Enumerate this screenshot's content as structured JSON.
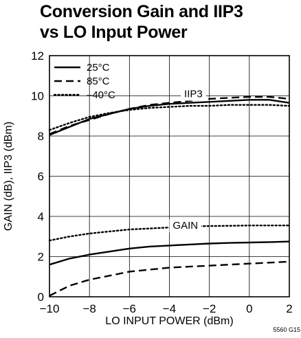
{
  "chart_data": {
    "type": "line",
    "title_line1": "Conversion Gain and IIP3",
    "title_line2": "vs LO Input Power",
    "xlabel": "LO INPUT POWER (dBm)",
    "ylabel": "GAIN (dB), IIP3 (dBm)",
    "xlim": [
      -10,
      2
    ],
    "ylim": [
      0,
      12
    ],
    "xticks": [
      -10,
      -8,
      -6,
      -4,
      -2,
      0,
      2
    ],
    "yticks": [
      0,
      2,
      4,
      6,
      8,
      10,
      12
    ],
    "grid": true,
    "legend_position": "top-left",
    "legend": [
      {
        "label": "25°C",
        "style": "solid"
      },
      {
        "label": "85°C",
        "style": "dashed"
      },
      {
        "label": "–40°C",
        "style": "dotted"
      }
    ],
    "annotations": [
      {
        "text": "IIP3",
        "x": -2.8,
        "y": 10.1
      },
      {
        "text": "GAIN",
        "x": -3.2,
        "y": 3.55
      }
    ],
    "figure_code": "5560 G15",
    "series": [
      {
        "group": "IIP3",
        "temperature": "25°C",
        "style": "solid",
        "x": [
          -10,
          -9,
          -8,
          -7,
          -6,
          -5,
          -4,
          -3,
          -2,
          -1,
          0,
          1,
          2
        ],
        "y": [
          8.05,
          8.45,
          8.85,
          9.1,
          9.35,
          9.5,
          9.6,
          9.65,
          9.7,
          9.75,
          9.8,
          9.8,
          9.65
        ]
      },
      {
        "group": "IIP3",
        "temperature": "85°C",
        "style": "dashed",
        "x": [
          -10,
          -9,
          -8,
          -7,
          -6,
          -5,
          -4,
          -3,
          -2,
          -1,
          0,
          1,
          2
        ],
        "y": [
          8.1,
          8.5,
          8.8,
          9.1,
          9.35,
          9.55,
          9.65,
          9.75,
          9.85,
          9.9,
          9.95,
          9.95,
          9.85
        ]
      },
      {
        "group": "IIP3",
        "temperature": "–40°C",
        "style": "dotted",
        "x": [
          -10,
          -9,
          -8,
          -7,
          -6,
          -5,
          -4,
          -3,
          -2,
          -1,
          0,
          1,
          2
        ],
        "y": [
          8.3,
          8.65,
          8.95,
          9.15,
          9.3,
          9.4,
          9.45,
          9.5,
          9.5,
          9.55,
          9.55,
          9.55,
          9.5
        ]
      },
      {
        "group": "GAIN",
        "temperature": "25°C",
        "style": "solid",
        "x": [
          -10,
          -9,
          -8,
          -7,
          -6,
          -5,
          -4,
          -3,
          -2,
          -1,
          0,
          1,
          2
        ],
        "y": [
          1.6,
          1.9,
          2.1,
          2.25,
          2.4,
          2.5,
          2.55,
          2.6,
          2.65,
          2.68,
          2.7,
          2.72,
          2.75
        ]
      },
      {
        "group": "GAIN",
        "temperature": "85°C",
        "style": "dashed",
        "x": [
          -10,
          -9,
          -8,
          -7,
          -6,
          -5,
          -4,
          -3,
          -2,
          -1,
          0,
          1,
          2
        ],
        "y": [
          0.05,
          0.55,
          0.85,
          1.05,
          1.25,
          1.35,
          1.45,
          1.5,
          1.55,
          1.6,
          1.65,
          1.7,
          1.75
        ]
      },
      {
        "group": "GAIN",
        "temperature": "–40°C",
        "style": "dotted",
        "x": [
          -10,
          -9,
          -8,
          -7,
          -6,
          -5,
          -4,
          -3,
          -2,
          -1,
          0,
          1,
          2
        ],
        "y": [
          2.8,
          3.0,
          3.15,
          3.25,
          3.35,
          3.4,
          3.45,
          3.5,
          3.52,
          3.53,
          3.55,
          3.55,
          3.55
        ]
      }
    ]
  }
}
